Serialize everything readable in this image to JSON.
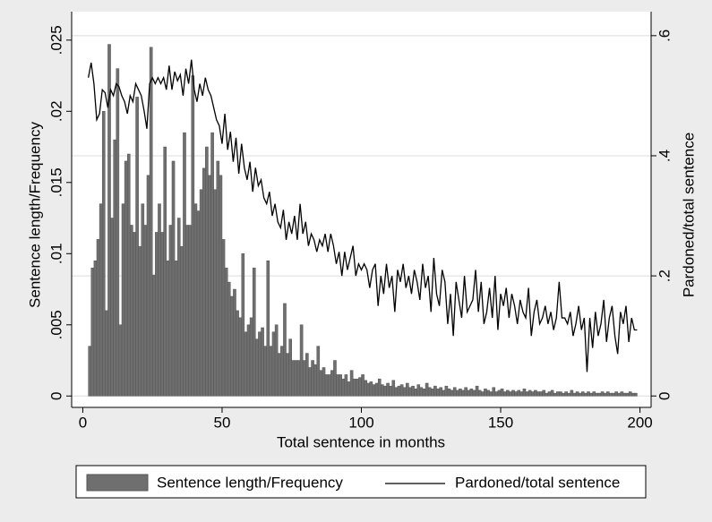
{
  "chart_data": {
    "type": "combo",
    "xlabel": "Total sentence in months",
    "ylabel": "Sentence length/Frequency",
    "y2label": "Pardoned/total sentence",
    "xlim": [
      -4,
      204
    ],
    "xticks": [
      0,
      50,
      100,
      150,
      200
    ],
    "ylim": [
      -0.0008,
      0.027
    ],
    "yticks": [
      {
        "value": 0,
        "label": "0"
      },
      {
        "value": 0.005,
        "label": ".005"
      },
      {
        "value": 0.01,
        "label": ".01"
      },
      {
        "value": 0.015,
        "label": ".015"
      },
      {
        "value": 0.02,
        "label": ".02"
      },
      {
        "value": 0.025,
        "label": ".025"
      }
    ],
    "y2lim": [
      -0.019,
      0.64
    ],
    "y2ticks": [
      {
        "value": 0,
        "label": "0"
      },
      {
        "value": 0.2,
        "label": ".2"
      },
      {
        "value": 0.4,
        "label": ".4"
      },
      {
        "value": 0.6,
        "label": ".6"
      }
    ],
    "grid": true,
    "series": [
      {
        "name": "Sentence length/Frequency",
        "type": "histogram",
        "color": "#6f6f6f",
        "bins": [
          2,
          3,
          4,
          5,
          6,
          7,
          8,
          9,
          10,
          11,
          12,
          13,
          14,
          15,
          16,
          17,
          18,
          19,
          20,
          21,
          22,
          23,
          24,
          25,
          26,
          27,
          28,
          29,
          30,
          31,
          32,
          33,
          34,
          35,
          36,
          37,
          38,
          39,
          40,
          41,
          42,
          43,
          44,
          45,
          46,
          47,
          48,
          49,
          50,
          51,
          52,
          53,
          54,
          55,
          56,
          57,
          58,
          59,
          60,
          61,
          62,
          63,
          64,
          65,
          66,
          67,
          68,
          69,
          70,
          71,
          72,
          73,
          74,
          75,
          76,
          77,
          78,
          79,
          80,
          81,
          82,
          83,
          84,
          85,
          86,
          87,
          88,
          89,
          90,
          91,
          92,
          93,
          94,
          95,
          96,
          97,
          98,
          99,
          100,
          101,
          102,
          103,
          104,
          105,
          106,
          107,
          108,
          109,
          110,
          111,
          112,
          113,
          114,
          115,
          116,
          117,
          118,
          119,
          120,
          121,
          122,
          123,
          124,
          125,
          126,
          127,
          128,
          129,
          130,
          131,
          132,
          133,
          134,
          135,
          136,
          137,
          138,
          139,
          140,
          141,
          142,
          143,
          144,
          145,
          146,
          147,
          148,
          149,
          150,
          151,
          152,
          153,
          154,
          155,
          156,
          157,
          158,
          159,
          160,
          161,
          162,
          163,
          164,
          165,
          166,
          167,
          168,
          169,
          170,
          171,
          172,
          173,
          174,
          175,
          176,
          177,
          178,
          179,
          180,
          181,
          182,
          183,
          184,
          185,
          186,
          187,
          188,
          189,
          190,
          191,
          192,
          193,
          194,
          195,
          196,
          197,
          198,
          199
        ],
        "values": [
          0.0035,
          0.009,
          0.0095,
          0.011,
          0.0135,
          0.02,
          0.006,
          0.0247,
          0.0125,
          0.018,
          0.023,
          0.005,
          0.0135,
          0.0165,
          0.017,
          0.012,
          0.0115,
          0.021,
          0.0105,
          0.0135,
          0.012,
          0.0155,
          0.0245,
          0.0085,
          0.0115,
          0.0135,
          0.0115,
          0.0175,
          0.0095,
          0.012,
          0.0165,
          0.0095,
          0.0125,
          0.0105,
          0.0185,
          0.012,
          0.012,
          0.0225,
          0.0135,
          0.013,
          0.0145,
          0.016,
          0.0175,
          0.0155,
          0.0185,
          0.0145,
          0.0165,
          0.0155,
          0.011,
          0.009,
          0.008,
          0.007,
          0.0075,
          0.006,
          0.0055,
          0.01,
          0.0045,
          0.005,
          0.0055,
          0.009,
          0.004,
          0.0045,
          0.0048,
          0.0035,
          0.0095,
          0.0035,
          0.0045,
          0.005,
          0.003,
          0.0035,
          0.0065,
          0.003,
          0.004,
          0.0025,
          0.0025,
          0.0025,
          0.005,
          0.0025,
          0.003,
          0.002,
          0.0025,
          0.0022,
          0.0035,
          0.0018,
          0.002,
          0.0015,
          0.0015,
          0.0018,
          0.0025,
          0.0015,
          0.0015,
          0.0012,
          0.0015,
          0.001,
          0.0018,
          0.0012,
          0.0012,
          0.0013,
          0.0015,
          0.0011,
          0.0009,
          0.001,
          0.0008,
          0.0009,
          0.0012,
          0.0008,
          0.0007,
          0.0009,
          0.0007,
          0.0011,
          0.0006,
          0.0007,
          0.0008,
          0.0006,
          0.0009,
          0.0006,
          0.0007,
          0.0005,
          0.0008,
          0.0006,
          0.0005,
          0.0009,
          0.0006,
          0.0005,
          0.0007,
          0.0005,
          0.0006,
          0.0004,
          0.0007,
          0.0005,
          0.0004,
          0.0006,
          0.0004,
          0.0005,
          0.0004,
          0.0006,
          0.0004,
          0.0005,
          0.0004,
          0.0007,
          0.0004,
          0.0003,
          0.0005,
          0.0004,
          0.0003,
          0.0006,
          0.0003,
          0.0004,
          0.0005,
          0.0003,
          0.0004,
          0.0003,
          0.0004,
          0.0003,
          0.0004,
          0.0003,
          0.0005,
          0.0003,
          0.0004,
          0.0003,
          0.0004,
          0.0003,
          0.0003,
          0.0004,
          0.0002,
          0.0003,
          0.0004,
          0.0002,
          0.0003,
          0.0003,
          0.0002,
          0.0003,
          0.0002,
          0.0004,
          0.0002,
          0.0003,
          0.0002,
          0.0003,
          0.0002,
          0.0003,
          0.0002,
          0.0003,
          0.0002,
          0.0002,
          0.0003,
          0.0002,
          0.0003,
          0.0002,
          0.0002,
          0.0003,
          0.0002,
          0.0003,
          0.0002,
          0.0002,
          0.0003,
          0.0002,
          0.0002
        ]
      },
      {
        "name": "Pardoned/total sentence",
        "type": "line",
        "axis": "y2",
        "color": "#000000",
        "x": [
          2,
          3,
          4,
          5,
          6,
          7,
          8,
          9,
          10,
          11,
          12,
          13,
          14,
          15,
          16,
          17,
          18,
          19,
          20,
          21,
          22,
          23,
          24,
          25,
          26,
          27,
          28,
          29,
          30,
          31,
          32,
          33,
          34,
          35,
          36,
          37,
          38,
          39,
          40,
          41,
          42,
          43,
          44,
          45,
          46,
          47,
          48,
          49,
          50,
          51,
          52,
          53,
          54,
          55,
          56,
          57,
          58,
          59,
          60,
          61,
          62,
          63,
          64,
          65,
          66,
          67,
          68,
          69,
          70,
          71,
          72,
          73,
          74,
          75,
          76,
          77,
          78,
          79,
          80,
          81,
          82,
          83,
          84,
          85,
          86,
          87,
          88,
          89,
          90,
          91,
          92,
          93,
          94,
          95,
          96,
          97,
          98,
          99,
          100,
          101,
          102,
          103,
          104,
          105,
          106,
          107,
          108,
          109,
          110,
          111,
          112,
          113,
          114,
          115,
          116,
          117,
          118,
          119,
          120,
          121,
          122,
          123,
          124,
          125,
          126,
          127,
          128,
          129,
          130,
          131,
          132,
          133,
          134,
          135,
          136,
          137,
          138,
          139,
          140,
          141,
          142,
          143,
          144,
          145,
          146,
          147,
          148,
          149,
          150,
          151,
          152,
          153,
          154,
          155,
          156,
          157,
          158,
          159,
          160,
          161,
          162,
          163,
          164,
          165,
          166,
          167,
          168,
          169,
          170,
          171,
          172,
          173,
          174,
          175,
          176,
          177,
          178,
          179,
          180,
          181,
          182,
          183,
          184,
          185,
          186,
          187,
          188,
          189,
          190,
          191,
          192,
          193,
          194,
          195,
          196,
          197,
          198,
          199
        ],
        "values": [
          0.53,
          0.555,
          0.52,
          0.46,
          0.47,
          0.51,
          0.505,
          0.48,
          0.51,
          0.5,
          0.52,
          0.515,
          0.5,
          0.49,
          0.47,
          0.5,
          0.49,
          0.52,
          0.51,
          0.5,
          0.475,
          0.445,
          0.52,
          0.53,
          0.52,
          0.53,
          0.52,
          0.53,
          0.51,
          0.55,
          0.51,
          0.54,
          0.525,
          0.535,
          0.5,
          0.545,
          0.52,
          0.56,
          0.51,
          0.49,
          0.52,
          0.5,
          0.53,
          0.51,
          0.5,
          0.48,
          0.46,
          0.45,
          0.42,
          0.47,
          0.41,
          0.44,
          0.39,
          0.43,
          0.37,
          0.42,
          0.38,
          0.36,
          0.39,
          0.34,
          0.38,
          0.35,
          0.36,
          0.33,
          0.32,
          0.34,
          0.3,
          0.32,
          0.29,
          0.28,
          0.31,
          0.26,
          0.29,
          0.27,
          0.3,
          0.26,
          0.32,
          0.27,
          0.29,
          0.25,
          0.27,
          0.26,
          0.24,
          0.26,
          0.25,
          0.27,
          0.24,
          0.27,
          0.25,
          0.22,
          0.24,
          0.2,
          0.24,
          0.21,
          0.23,
          0.25,
          0.2,
          0.22,
          0.21,
          0.22,
          0.21,
          0.18,
          0.21,
          0.22,
          0.15,
          0.2,
          0.17,
          0.22,
          0.18,
          0.2,
          0.14,
          0.21,
          0.19,
          0.22,
          0.18,
          0.2,
          0.17,
          0.21,
          0.19,
          0.16,
          0.22,
          0.18,
          0.2,
          0.14,
          0.23,
          0.17,
          0.15,
          0.21,
          0.19,
          0.12,
          0.17,
          0.1,
          0.19,
          0.16,
          0.13,
          0.2,
          0.14,
          0.15,
          0.16,
          0.21,
          0.14,
          0.19,
          0.12,
          0.14,
          0.18,
          0.13,
          0.2,
          0.11,
          0.17,
          0.15,
          0.18,
          0.13,
          0.17,
          0.15,
          0.12,
          0.16,
          0.14,
          0.13,
          0.18,
          0.1,
          0.14,
          0.16,
          0.12,
          0.13,
          0.15,
          0.12,
          0.14,
          0.11,
          0.13,
          0.19,
          0.13,
          0.13,
          0.12,
          0.14,
          0.1,
          0.12,
          0.15,
          0.11,
          0.13,
          0.04,
          0.13,
          0.08,
          0.14,
          0.1,
          0.12,
          0.16,
          0.09,
          0.13,
          0.15,
          0.1,
          0.07,
          0.14,
          0.12,
          0.15,
          0.09,
          0.13,
          0.11,
          0.11
        ]
      }
    ]
  }
}
